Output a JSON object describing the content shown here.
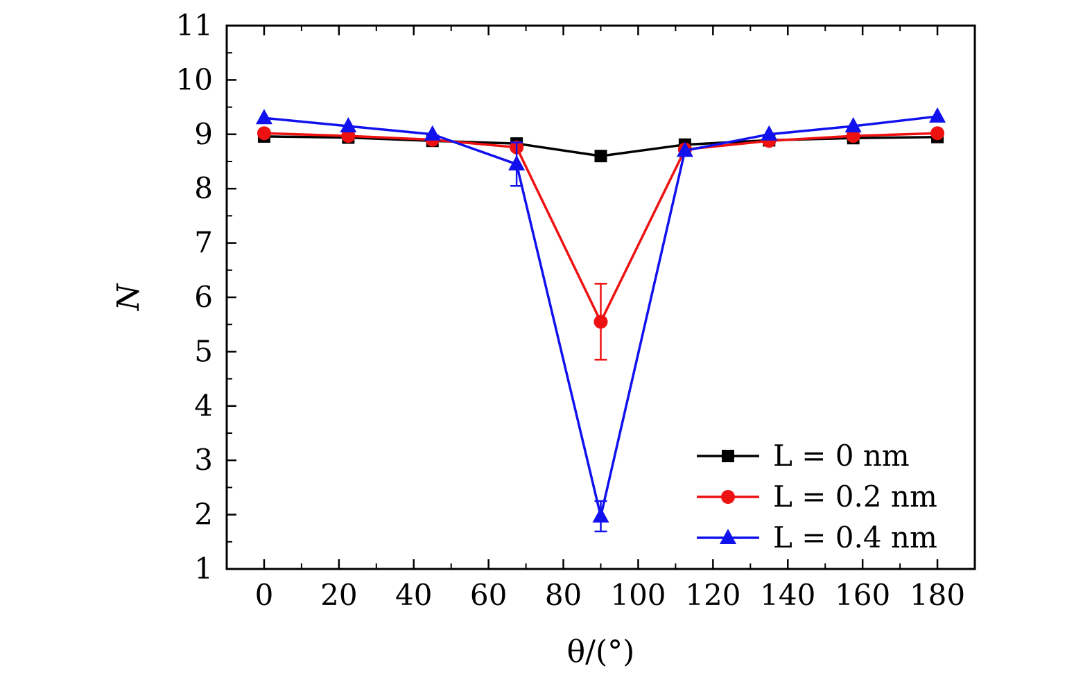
{
  "chart_data": {
    "type": "line",
    "title": "",
    "xlabel": "θ/(°)",
    "ylabel": "N",
    "xlim": [
      -10,
      190
    ],
    "ylim": [
      1,
      11
    ],
    "xticks": [
      0,
      20,
      40,
      60,
      80,
      100,
      120,
      140,
      160,
      180
    ],
    "yticks": [
      1,
      2,
      3,
      4,
      5,
      6,
      7,
      8,
      9,
      10,
      11
    ],
    "x": [
      0,
      22.5,
      45,
      67.5,
      90,
      112.5,
      135,
      157.5,
      180
    ],
    "grid": false,
    "legend_position": "bottom-right",
    "series": [
      {
        "name": "L = 0 nm",
        "color": "#000000",
        "marker": "square",
        "values": [
          8.96,
          8.94,
          8.88,
          8.83,
          8.6,
          8.81,
          8.89,
          8.93,
          8.95
        ],
        "error": [
          0,
          0,
          0,
          0,
          0,
          0,
          0,
          0,
          0
        ]
      },
      {
        "name": "L = 0.2 nm",
        "color": "#ee1111",
        "marker": "circle",
        "values": [
          9.02,
          8.97,
          8.9,
          8.76,
          5.55,
          8.72,
          8.88,
          8.97,
          9.02
        ],
        "error": [
          0,
          0,
          0,
          0,
          0.7,
          0,
          0,
          0,
          0
        ]
      },
      {
        "name": "L = 0.4 nm",
        "color": "#1111ee",
        "marker": "triangle",
        "values": [
          9.3,
          9.15,
          9.0,
          8.45,
          1.97,
          8.7,
          9.0,
          9.15,
          9.33
        ],
        "error": [
          0,
          0,
          0,
          0.4,
          0.28,
          0,
          0,
          0,
          0
        ]
      }
    ]
  }
}
